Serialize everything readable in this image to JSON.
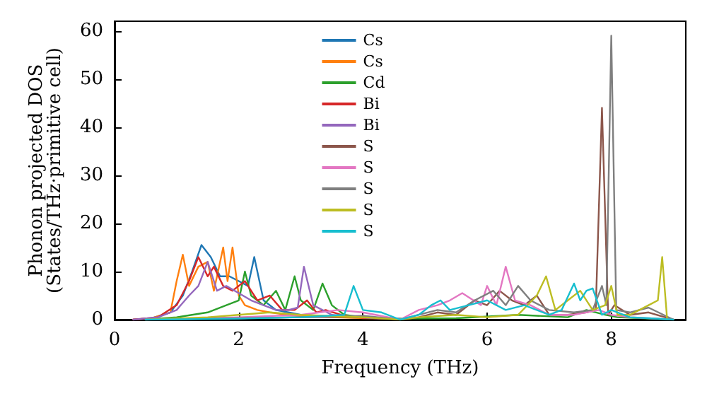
{
  "chart_data": {
    "type": "line",
    "xlabel": "Frequency (THz)",
    "ylabel": "Phonon projected DOS\n(States/THz·primitive cell)",
    "xlim": [
      0,
      9.2
    ],
    "ylim": [
      0,
      62
    ],
    "xticks": [
      0,
      2,
      4,
      6,
      8
    ],
    "yticks": [
      0,
      10,
      20,
      30,
      40,
      50,
      60
    ],
    "grid": false,
    "legend": "top",
    "marker": "none",
    "line_style": "solid",
    "series": [
      {
        "name": "Cs",
        "color": "#1f77b4",
        "x": [
          0.3,
          0.6,
          0.9,
          1.1,
          1.25,
          1.4,
          1.55,
          1.7,
          1.85,
          2.0,
          2.15,
          2.25,
          2.4,
          2.6,
          2.8,
          3.0,
          3.3,
          3.6,
          4.0,
          4.5
        ],
        "values": [
          0,
          0.3,
          1.5,
          5,
          10,
          15.5,
          13,
          9,
          9,
          8,
          7,
          13,
          4,
          2,
          1.5,
          1,
          0.8,
          0.5,
          0.4,
          0.2
        ]
      },
      {
        "name": "Cs",
        "color": "#ff7f0e",
        "x": [
          0.3,
          0.6,
          0.9,
          1.0,
          1.1,
          1.2,
          1.35,
          1.5,
          1.6,
          1.75,
          1.82,
          1.9,
          2.0,
          2.1,
          2.3,
          2.5,
          2.8,
          3.0,
          3.5,
          4.0,
          4.5
        ],
        "values": [
          0,
          0.3,
          1.5,
          8,
          13.5,
          7,
          11,
          12,
          6,
          15,
          8,
          15,
          5,
          3,
          2,
          1.5,
          1,
          0.8,
          0.5,
          0.3,
          0.2
        ]
      },
      {
        "name": "Cd",
        "color": "#2ca02c",
        "x": [
          0.5,
          1.0,
          1.5,
          1.8,
          2.0,
          2.1,
          2.2,
          2.4,
          2.6,
          2.75,
          2.9,
          3.0,
          3.2,
          3.35,
          3.5,
          3.7,
          4.0,
          4.5,
          5.5,
          6.5,
          7.3,
          7.6,
          7.9,
          8.1,
          8.5,
          9.0
        ],
        "values": [
          0,
          0.5,
          1.5,
          3,
          4,
          10,
          5,
          3,
          6,
          2,
          9,
          4,
          2,
          7.5,
          3,
          1,
          0.5,
          0.2,
          0.3,
          1,
          0.5,
          2,
          1,
          0.5,
          0.3,
          0
        ]
      },
      {
        "name": "Bi",
        "color": "#d62728",
        "x": [
          0.3,
          0.7,
          1.0,
          1.2,
          1.35,
          1.5,
          1.6,
          1.75,
          1.9,
          2.1,
          2.3,
          2.5,
          2.7,
          2.9,
          3.1,
          3.25,
          3.4,
          3.7,
          4.0,
          4.5
        ],
        "values": [
          0,
          0.5,
          3,
          8,
          13,
          9,
          11,
          7,
          6,
          8,
          4,
          5,
          2,
          2,
          4,
          1.5,
          2,
          0.8,
          0.4,
          0.2
        ]
      },
      {
        "name": "Bi",
        "color": "#9467bd",
        "x": [
          0.3,
          0.7,
          1.0,
          1.2,
          1.35,
          1.5,
          1.65,
          1.8,
          2.0,
          2.2,
          2.4,
          2.6,
          2.8,
          2.95,
          3.05,
          3.2,
          3.5,
          3.8,
          4.2,
          4.6
        ],
        "values": [
          0,
          0.5,
          2,
          5,
          7,
          12,
          6,
          7,
          5.5,
          4,
          3,
          2,
          2,
          2.5,
          11,
          3,
          1,
          0.6,
          0.3,
          0.2
        ]
      },
      {
        "name": "S",
        "color": "#8c564b",
        "x": [
          0.5,
          2.0,
          3.0,
          4.0,
          4.6,
          4.9,
          5.2,
          5.5,
          5.8,
          6.0,
          6.2,
          6.4,
          6.6,
          6.8,
          7.0,
          7.3,
          7.6,
          7.75,
          7.85,
          7.95,
          8.05,
          8.3,
          8.6,
          9.0
        ],
        "values": [
          0,
          0.3,
          0.5,
          0.6,
          0,
          0.5,
          1.5,
          1,
          4,
          3,
          6,
          4,
          3,
          5,
          1,
          1,
          1.5,
          2,
          44,
          1,
          3,
          1,
          1.5,
          0
        ]
      },
      {
        "name": "S",
        "color": "#e377c2",
        "x": [
          0.5,
          2.0,
          3.0,
          3.6,
          4.0,
          4.6,
          4.9,
          5.2,
          5.4,
          5.6,
          5.9,
          6.0,
          6.15,
          6.3,
          6.45,
          6.7,
          7.0,
          7.4,
          7.8,
          8.0,
          8.3,
          8.6,
          9.0
        ],
        "values": [
          0,
          0.5,
          1,
          2,
          1.5,
          0,
          2,
          3,
          4,
          5.5,
          3,
          7,
          3,
          11,
          4,
          3,
          1,
          1,
          2,
          1,
          0.5,
          0.3,
          0
        ]
      },
      {
        "name": "S",
        "color": "#7f7f7f",
        "x": [
          0.5,
          2.0,
          3.0,
          4.0,
          4.6,
          4.9,
          5.2,
          5.5,
          5.8,
          6.1,
          6.3,
          6.5,
          6.7,
          7.0,
          7.4,
          7.7,
          7.85,
          7.92,
          8.0,
          8.08,
          8.3,
          8.6,
          9.0
        ],
        "values": [
          0,
          0.3,
          0.5,
          0.8,
          0,
          1,
          2,
          1.5,
          4,
          6,
          3,
          7,
          4,
          2,
          1.5,
          2,
          7,
          3,
          59,
          2,
          1.5,
          2.5,
          0
        ]
      },
      {
        "name": "S",
        "color": "#bcbd22",
        "x": [
          0.5,
          1.5,
          2.0,
          2.5,
          3.0,
          4.0,
          4.6,
          4.9,
          5.5,
          6.0,
          6.5,
          6.8,
          6.95,
          7.1,
          7.3,
          7.5,
          7.7,
          7.9,
          8.0,
          8.1,
          8.3,
          8.6,
          8.75,
          8.82,
          8.9
        ],
        "values": [
          0,
          0.5,
          1,
          1.5,
          1,
          0.5,
          0,
          0.5,
          1,
          0.5,
          1,
          5,
          9,
          2,
          4,
          6,
          2,
          3,
          7,
          1,
          1,
          3,
          4,
          13,
          0
        ]
      },
      {
        "name": "S",
        "color": "#17becf",
        "x": [
          0.5,
          2.0,
          3.0,
          3.7,
          3.85,
          4.0,
          4.3,
          4.6,
          4.9,
          5.1,
          5.25,
          5.4,
          5.7,
          6.0,
          6.3,
          6.6,
          7.0,
          7.2,
          7.4,
          7.5,
          7.6,
          7.7,
          7.85,
          8.0,
          8.3,
          8.6,
          9.0
        ],
        "values": [
          0,
          0.2,
          0.5,
          1,
          7,
          2,
          1.5,
          0,
          1,
          3,
          4,
          2,
          3,
          4,
          2,
          3,
          1,
          2,
          7.5,
          4,
          6,
          6.5,
          1,
          2,
          0.5,
          0.3,
          0
        ]
      }
    ]
  }
}
